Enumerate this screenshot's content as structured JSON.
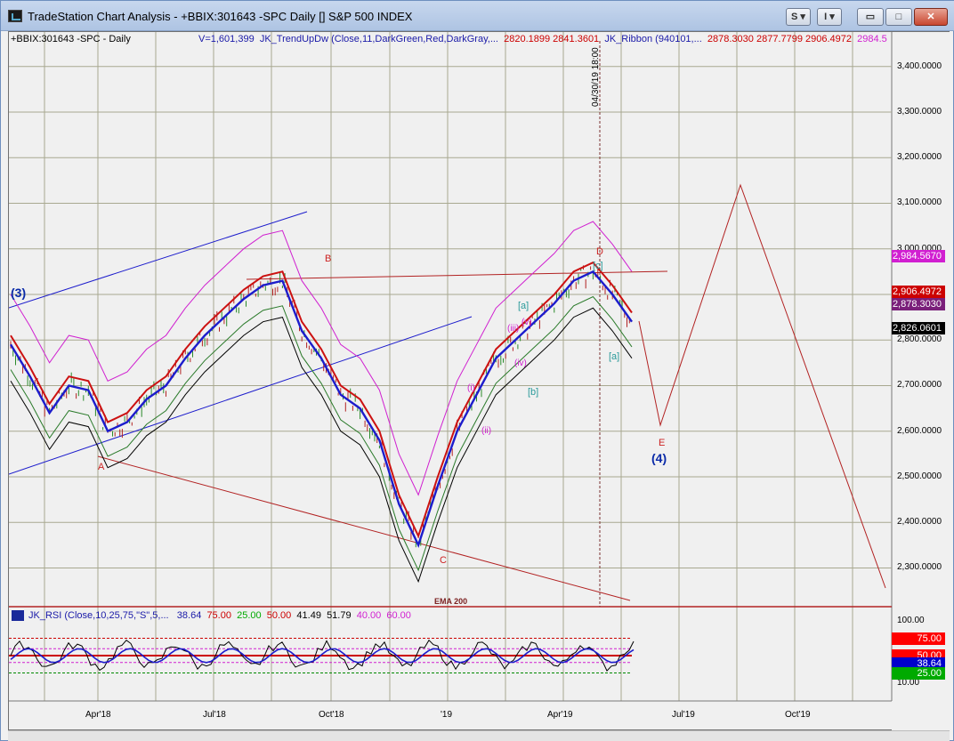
{
  "window": {
    "title": "TradeStation Chart Analysis - +BBIX:301643 -SPC Daily [] S&P 500 INDEX",
    "btn_s": "S ▾",
    "btn_i": "I ▾",
    "btn_min": "▭",
    "btn_max": "□",
    "btn_close": "✕"
  },
  "header": {
    "symbol": "+BBIX:301643 -SPC - Daily",
    "v_text": "V=1,601,399",
    "trend_text": "JK_TrendUpDw (Close,11,DarkGreen,Red,DarkGray,...",
    "trend_vals": "2820.1899  2841.3601",
    "ribbon_text": "JK_Ribbon (940101,...",
    "ribbon_vals": "2878.3030  2877.7799  2906.4972",
    "ribbon_last": "2984.5"
  },
  "rsi_header": {
    "name": "JK_RSI (Close,10,25,75,\"S\",5,...",
    "v1": "38.64",
    "v2": "75.00",
    "v3": "25.00",
    "v4": "50.00",
    "v5": "41.49",
    "v6": "51.79",
    "v7": "40.00",
    "v8": "60.00"
  },
  "price_axis": {
    "labels": [
      "3,400.0000",
      "3,300.0000",
      "3,200.0000",
      "3,100.0000",
      "3,000.0000",
      "2,900.0000",
      "2,800.0000",
      "2,700.0000",
      "2,600.0000",
      "2,500.0000",
      "2,400.0000",
      "2,300.0000"
    ],
    "badges": [
      {
        "text": "2,984.5670",
        "color": "#d11fd1"
      },
      {
        "text": "2,906.4972",
        "color": "#cc0000"
      },
      {
        "text": "2,878.3030",
        "color": "#7a1f7a"
      },
      {
        "text": "2,826.0601",
        "color": "#000000"
      }
    ]
  },
  "rsi_axis": {
    "labels": [
      "100.00",
      "10.00"
    ],
    "badges": [
      {
        "text": "75.00",
        "color": "#ff0000"
      },
      {
        "text": "50.00",
        "color": "#ff0000"
      },
      {
        "text": "38.64",
        "color": "#0000cc"
      },
      {
        "text": "25.00",
        "color": "#00aa00"
      }
    ]
  },
  "months": [
    "Apr'18",
    "Jul'18",
    "Oct'18",
    "'19",
    "Apr'19",
    "Jul'19",
    "Oct'19"
  ],
  "wave_labels": [
    {
      "text": "(3)",
      "color": "#0a2aa8"
    },
    {
      "text": "B",
      "color": "#cc2222"
    },
    {
      "text": "A",
      "color": "#cc2222"
    },
    {
      "text": "C",
      "color": "#cc2222"
    },
    {
      "text": "D",
      "color": "#cc2222"
    },
    {
      "text": "E",
      "color": "#cc2222"
    },
    {
      "text": "(4)",
      "color": "#0a2aa8"
    },
    {
      "text": "[a]",
      "color": "#2a9a9a"
    },
    {
      "text": "[c]",
      "color": "#2a9a9a"
    },
    {
      "text": "[b]",
      "color": "#2a9a9a"
    },
    {
      "text": "[a]",
      "color": "#2a9a9a"
    },
    {
      "text": "(iii)",
      "color": "#d020d0"
    },
    {
      "text": "(v)",
      "color": "#d020d0"
    },
    {
      "text": "(iv)",
      "color": "#d020d0"
    },
    {
      "text": "(i)",
      "color": "#d020d0"
    },
    {
      "text": "(ii)",
      "color": "#d020d0"
    }
  ],
  "annotations": {
    "date_marker": "04/30/19 18:00",
    "ema_label": "EMA 200"
  },
  "chart_data": {
    "type": "line",
    "title": "",
    "ylim": [
      2215,
      3460
    ],
    "yticks": [
      3400,
      3300,
      3200,
      3100,
      3000,
      2900,
      2800,
      2700,
      2600,
      2500,
      2400,
      2300
    ],
    "grid": true,
    "series": [
      {
        "name": "",
        "values": [
          2790,
          2720,
          2640,
          2700,
          2690,
          2600,
          2620,
          2670,
          2700,
          2760,
          2810,
          2850,
          2890,
          2920,
          2930,
          2820,
          2760,
          2680,
          2650,
          2580,
          2440,
          2350,
          2480,
          2600,
          2680,
          2760,
          2800,
          2840,
          2880,
          2930,
          2950,
          2900,
          2840
        ]
      }
    ]
  }
}
